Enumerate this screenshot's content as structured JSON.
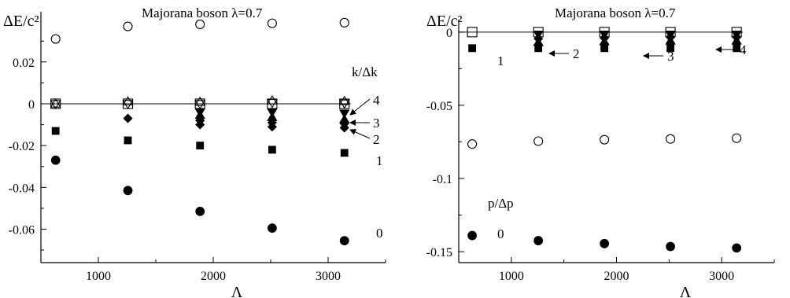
{
  "chart_data": [
    {
      "type": "scatter",
      "title": "Majorana boson λ=0.7",
      "ylabel": "ΔE/c²",
      "xlabel": "Λ",
      "legend_title": "k/Δk",
      "xlim": [
        500,
        3500
      ],
      "ylim": [
        -0.076,
        0.044
      ],
      "x_ticks": [
        1000,
        2000,
        3000
      ],
      "x_tick_labels": [
        "1000",
        "2000",
        "3000"
      ],
      "y_ticks": [
        0.02,
        0,
        -0.02,
        -0.04,
        -0.06
      ],
      "y_tick_labels": [
        "0.02",
        "0",
        "-0.02",
        "-0.04",
        "-0.06"
      ],
      "reference_line_y": 0,
      "x": [
        628,
        1257,
        1885,
        2513,
        3142
      ],
      "series": [
        {
          "marker": "open-circle",
          "values": [
            0.031,
            0.037,
            0.038,
            0.0385,
            0.0388
          ]
        },
        {
          "marker": "open-square",
          "values": [
            0,
            0,
            0,
            0,
            0
          ]
        },
        {
          "marker": "open-triangle-down",
          "values": [
            0,
            0,
            0,
            0.0005,
            0.0002
          ]
        },
        {
          "marker": "open-triangle-up",
          "values": [
            0,
            0.001,
            0.0008,
            0.0015,
            0.0012
          ]
        },
        {
          "marker": "filled-triangle-down",
          "values": [
            null,
            null,
            -0.004,
            -0.004,
            -0.0045
          ]
        },
        {
          "marker": "filled-triangle-up",
          "values": [
            null,
            null,
            -0.0055,
            -0.0065,
            -0.0075
          ]
        },
        {
          "marker": "filled-diamond",
          "values": [
            null,
            -0.007,
            -0.008,
            -0.009,
            -0.0095
          ]
        },
        {
          "marker": "filled-diamond",
          "values": [
            null,
            null,
            -0.01,
            -0.011,
            -0.0115
          ]
        },
        {
          "marker": "filled-square",
          "values": [
            -0.013,
            -0.0175,
            -0.02,
            -0.022,
            -0.0235
          ]
        },
        {
          "marker": "filled-circle",
          "values": [
            -0.027,
            -0.0415,
            -0.0515,
            -0.0595,
            -0.0655
          ]
        }
      ],
      "annotations": {
        "arrows": [
          "4",
          "3",
          "2"
        ],
        "labels": [
          "1",
          "0"
        ]
      }
    },
    {
      "type": "scatter",
      "title": "Majorana boson λ=0.7",
      "ylabel": "ΔE/c²",
      "xlabel": "Λ",
      "legend_title": "p/Δp",
      "xlim": [
        500,
        3500
      ],
      "ylim": [
        -0.1575,
        0.0085
      ],
      "x_ticks": [
        1000,
        2000,
        3000
      ],
      "x_tick_labels": [
        "1000",
        "2000",
        "3000"
      ],
      "y_ticks": [
        0,
        -0.05,
        -0.1,
        -0.15
      ],
      "y_tick_labels": [
        "0",
        "-0.05",
        "-0.1",
        "-0.15"
      ],
      "reference_line_y": 0,
      "x": [
        628,
        1257,
        1885,
        2513,
        3142
      ],
      "series": [
        {
          "marker": "open-square",
          "values": [
            0,
            0,
            0,
            0,
            0
          ]
        },
        {
          "marker": "filled-triangle-down",
          "values": [
            null,
            -0.0015,
            -0.0015,
            -0.0015,
            -0.0015
          ]
        },
        {
          "marker": "filled-diamond",
          "values": [
            null,
            -0.0045,
            -0.004,
            -0.0035,
            -0.0035
          ]
        },
        {
          "marker": "filled-triangle-up",
          "values": [
            null,
            -0.007,
            -0.0065,
            -0.006,
            -0.006
          ]
        },
        {
          "marker": "filled-square",
          "values": [
            -0.011,
            -0.011,
            -0.011,
            -0.011,
            -0.011
          ]
        },
        {
          "marker": "open-circle",
          "values": [
            -0.0765,
            -0.0745,
            -0.0735,
            -0.073,
            -0.0725
          ]
        },
        {
          "marker": "filled-circle",
          "values": [
            -0.139,
            -0.1425,
            -0.1445,
            -0.1465,
            -0.1475
          ]
        }
      ],
      "annotations": {
        "arrows": [
          "2",
          "3",
          "4"
        ],
        "labels": [
          "1",
          "0"
        ]
      }
    }
  ]
}
